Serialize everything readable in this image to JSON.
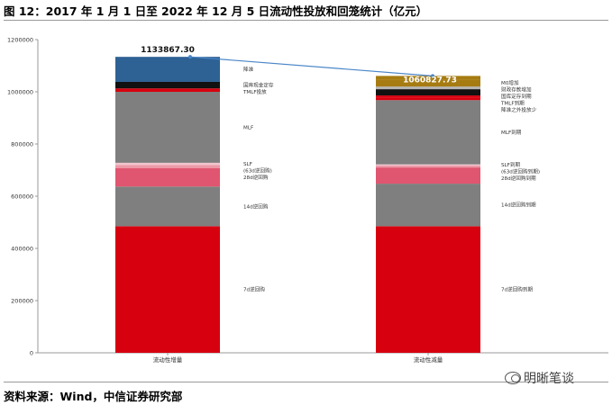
{
  "header": {
    "title": "图 12：2017 年 1 月 1 日至 2022 年 12 月 5 日流动性投放和回笼统计（亿元）"
  },
  "footer": {
    "source": "资料来源：Wind，中信证券研究部",
    "watermark": "明晰笔谈"
  },
  "chart_data": {
    "type": "bar",
    "subtype": "stacked-waterfall",
    "title": "2017 年 1 月 1 日至 2022 年 12 月 5 日流动性投放和回笼统计（亿元）",
    "ylabel": "亿元",
    "ylim": [
      0,
      1200000
    ],
    "yticks": [
      "0",
      "200000",
      "400000",
      "600000",
      "800000",
      "1000000",
      "1200000"
    ],
    "ytick_values": [
      0,
      200000,
      400000,
      600000,
      800000,
      1000000,
      1200000
    ],
    "categories": [
      "流动性增量",
      "流动性减量"
    ],
    "totals": [
      1133867.3,
      1060827.73
    ],
    "total_labels": [
      "1133867.30",
      "1060827.73"
    ],
    "total_line_color": "#4a86c8",
    "stacks": [
      {
        "category": "流动性增量",
        "segments": [
          {
            "name": "7d逆回购",
            "label": "7d逆回购",
            "start": 0,
            "end": 485000,
            "color": "#d7000f"
          },
          {
            "name": "14d逆回购",
            "label": "14d逆回购",
            "start": 485000,
            "end": 637000,
            "color": "#7f7f7f"
          },
          {
            "name": "28d逆回购",
            "label": "28d逆回购",
            "start": 637000,
            "end": 708000,
            "color": "#e0556f"
          },
          {
            "name": "63d逆回购",
            "label": "(63d逆回购)",
            "start": 708000,
            "end": 720000,
            "color": "#ec9aa8"
          },
          {
            "name": "SLF",
            "label": "SLF",
            "start": 720000,
            "end": 728000,
            "color": "#f1c5cd"
          },
          {
            "name": "MLF",
            "label": "MLF",
            "start": 728000,
            "end": 1000000,
            "color": "#7f7f7f"
          },
          {
            "name": "TMLF投放",
            "label": "TMLF投放",
            "start": 1000000,
            "end": 1013000,
            "color": "#d7000f"
          },
          {
            "name": "国库现金定存",
            "label": "国库现金定存",
            "start": 1013000,
            "end": 1038000,
            "color": "#111111"
          },
          {
            "name": "降准",
            "label": "降准",
            "start": 1038000,
            "end": 1133867.3,
            "color": "#2e6194"
          }
        ]
      },
      {
        "category": "流动性减量",
        "segments": [
          {
            "name": "7d逆回购到期",
            "label": "7d逆回购到期",
            "start": 0,
            "end": 485000,
            "color": "#d7000f"
          },
          {
            "name": "14d逆回购到期",
            "label": "14d逆回购到期",
            "start": 485000,
            "end": 648000,
            "color": "#7f7f7f"
          },
          {
            "name": "28d逆回购到期",
            "label": "28d逆回购到期",
            "start": 648000,
            "end": 710000,
            "color": "#e0556f"
          },
          {
            "name": "63d逆回购到期",
            "label": "(63d逆回购到期)",
            "start": 710000,
            "end": 718000,
            "color": "#ec9aa8"
          },
          {
            "name": "SLF到期",
            "label": "SLF到期",
            "start": 718000,
            "end": 722000,
            "color": "#f1c5cd"
          },
          {
            "name": "MLF到期",
            "label": "MLF到期",
            "start": 722000,
            "end": 968000,
            "color": "#7f7f7f"
          },
          {
            "name": "降准之外投放少",
            "label": "降准之外投放少",
            "start": 968000,
            "end": 978000,
            "color": "#d7000f"
          },
          {
            "name": "TMLF到期",
            "label": "TMLF到期",
            "start": 978000,
            "end": 986000,
            "color": "#d7000f"
          },
          {
            "name": "国库定存到期",
            "label": "国库定存到期",
            "start": 986000,
            "end": 1010000,
            "color": "#111111"
          },
          {
            "name": "财政存款增加",
            "label": "财政存款增加",
            "start": 1010000,
            "end": 1020000,
            "color": "#b5b5b5"
          },
          {
            "name": "M0增加",
            "label": "M0增加",
            "start": 1020000,
            "end": 1048000,
            "color": "#a67c12"
          },
          {
            "name": "顶部",
            "label": "",
            "start": 1048000,
            "end": 1060827.73,
            "color": "#a67c12"
          }
        ]
      }
    ]
  }
}
